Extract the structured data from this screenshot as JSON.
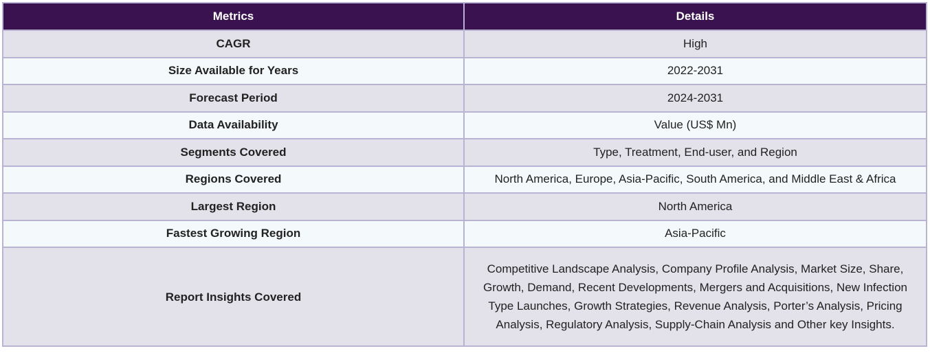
{
  "table": {
    "headers": [
      "Metrics",
      "Details"
    ],
    "rows": [
      {
        "metric": "CAGR",
        "details": "High"
      },
      {
        "metric": "Size Available for Years",
        "details": "2022-2031"
      },
      {
        "metric": "Forecast Period",
        "details": "2024-2031"
      },
      {
        "metric": "Data Availability",
        "details": "Value (US$ Mn)"
      },
      {
        "metric": "Segments Covered",
        "details": "Type, Treatment, End-user, and Region"
      },
      {
        "metric": "Regions Covered",
        "details": "North America, Europe, Asia-Pacific, South America, and Middle East & Africa"
      },
      {
        "metric": "Largest Region",
        "details": "North America"
      },
      {
        "metric": "Fastest Growing Region",
        "details": "Asia-Pacific"
      },
      {
        "metric": "Report Insights Covered",
        "details": "Competitive Landscape Analysis, Company Profile Analysis, Market Size, Share, Growth, Demand, Recent Developments, Mergers and Acquisitions, New Infection Type Launches, Growth Strategies, Revenue Analysis, Porter’s Analysis, Pricing Analysis, Regulatory Analysis, Supply-Chain Analysis and Other key Insights."
      }
    ]
  },
  "colors": {
    "header_bg": "#3b1250",
    "row_odd_bg": "#e3e1ea",
    "row_even_bg": "#f4f9fc",
    "border": "#b9b3d3"
  }
}
